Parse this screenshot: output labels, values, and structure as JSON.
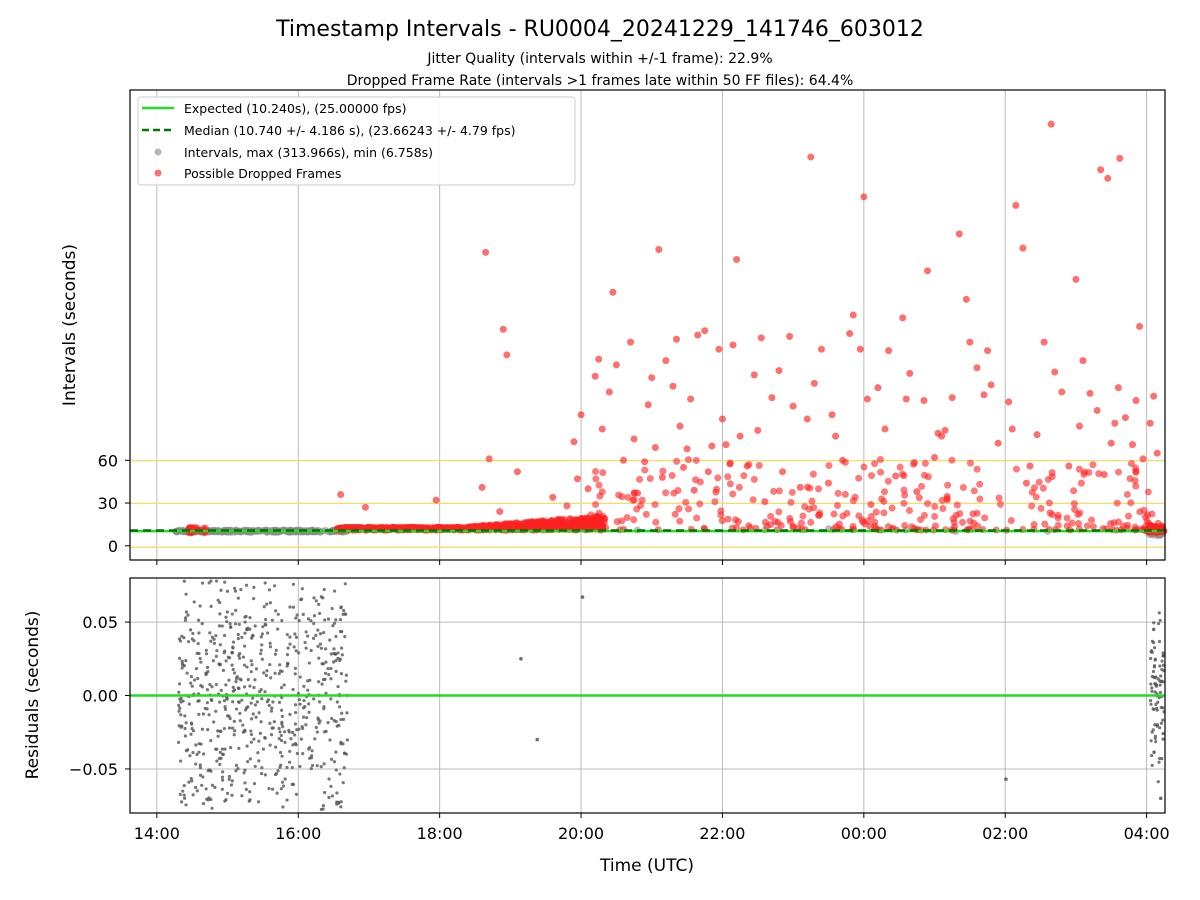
{
  "chart_data": [
    {
      "type": "scatter",
      "title": "Timestamp Intervals - RU0004_20241229_141746_603012",
      "subtitle_lines": [
        "Jitter Quality (intervals within +/-1 frame): 22.9%",
        "Dropped Frame Rate (intervals >1 frames late within 50 FF files): 64.4%"
      ],
      "ylabel": "Intervals (seconds)",
      "yticks": [
        0,
        30,
        60
      ],
      "ytick_labels": [
        "0",
        "30",
        "60"
      ],
      "ylim": [
        -10,
        320
      ],
      "xlim": [
        13.62,
        28.26
      ],
      "xticks": [
        14,
        16,
        18,
        20,
        22,
        24,
        26,
        28
      ],
      "threshold_lines": [
        -1,
        10.24,
        29.76,
        59.76
      ],
      "expected_interval": 10.24,
      "median_interval": 10.74,
      "legend": [
        {
          "label": "Expected (10.240s), (25.00000 fps)",
          "marker": "line",
          "color": "#22dd22"
        },
        {
          "label": "Median (10.740 +/- 4.186 s), (23.66243 +/- 4.79 fps)",
          "marker": "dashed",
          "color": "#007700"
        },
        {
          "label": "Intervals, max (313.966s), min (6.758s)",
          "marker": "dot",
          "color": "#999999"
        },
        {
          "label": "Possible Dropped Frames",
          "marker": "dot",
          "color": "#ff3333"
        }
      ],
      "series": [
        {
          "name": "Possible Dropped Frames",
          "points": [
            [
              16.6,
              36
            ],
            [
              16.95,
              27
            ],
            [
              17.95,
              32
            ],
            [
              18.6,
              41
            ],
            [
              18.65,
              206
            ],
            [
              18.7,
              61
            ],
            [
              18.85,
              24
            ],
            [
              18.9,
              152
            ],
            [
              18.95,
              134
            ],
            [
              19.1,
              52
            ],
            [
              19.6,
              34
            ],
            [
              19.8,
              28
            ],
            [
              19.9,
              73
            ],
            [
              19.95,
              47
            ],
            [
              20.0,
              92
            ],
            [
              20.1,
              40
            ],
            [
              20.2,
              119
            ],
            [
              20.25,
              131
            ],
            [
              20.3,
              82
            ],
            [
              20.4,
              108
            ],
            [
              20.45,
              178
            ],
            [
              20.5,
              127
            ],
            [
              20.6,
              60
            ],
            [
              20.7,
              143
            ],
            [
              20.75,
              75
            ],
            [
              20.8,
              37
            ],
            [
              20.9,
              59
            ],
            [
              20.95,
              99
            ],
            [
              21.0,
              118
            ],
            [
              21.05,
              69
            ],
            [
              21.1,
              208
            ],
            [
              21.15,
              48
            ],
            [
              21.2,
              130
            ],
            [
              21.3,
              112
            ],
            [
              21.35,
              145
            ],
            [
              21.4,
              84
            ],
            [
              21.45,
              55
            ],
            [
              21.5,
              68
            ],
            [
              21.55,
              103
            ],
            [
              21.6,
              39
            ],
            [
              21.65,
              148
            ],
            [
              21.75,
              151
            ],
            [
              21.8,
              52
            ],
            [
              21.85,
              70
            ],
            [
              21.95,
              138
            ],
            [
              22.0,
              89
            ],
            [
              22.05,
              71
            ],
            [
              22.15,
              141
            ],
            [
              22.2,
              201
            ],
            [
              22.25,
              77
            ],
            [
              22.35,
              56
            ],
            [
              22.45,
              120
            ],
            [
              22.5,
              81
            ],
            [
              22.55,
              146
            ],
            [
              22.6,
              31
            ],
            [
              22.7,
              104
            ],
            [
              22.8,
              123
            ],
            [
              22.85,
              52
            ],
            [
              22.95,
              147
            ],
            [
              23.0,
              98
            ],
            [
              23.1,
              41
            ],
            [
              23.2,
              89
            ],
            [
              23.25,
              273
            ],
            [
              23.3,
              114
            ],
            [
              23.4,
              138
            ],
            [
              23.5,
              44
            ],
            [
              23.55,
              92
            ],
            [
              23.6,
              77
            ],
            [
              23.7,
              60
            ],
            [
              23.8,
              149
            ],
            [
              23.85,
              162
            ],
            [
              23.95,
              138
            ],
            [
              24.0,
              245
            ],
            [
              24.05,
              103
            ],
            [
              24.1,
              29
            ],
            [
              24.2,
              111
            ],
            [
              24.3,
              82
            ],
            [
              24.35,
              137
            ],
            [
              24.45,
              49
            ],
            [
              24.55,
              160
            ],
            [
              24.6,
              103
            ],
            [
              24.65,
              121
            ],
            [
              24.75,
              38
            ],
            [
              24.85,
              102
            ],
            [
              24.9,
              193
            ],
            [
              25.0,
              62
            ],
            [
              25.05,
              79
            ],
            [
              25.1,
              77
            ],
            [
              25.15,
              81
            ],
            [
              25.25,
              104
            ],
            [
              25.35,
              219
            ],
            [
              25.45,
              173
            ],
            [
              25.5,
              143
            ],
            [
              25.6,
              125
            ],
            [
              25.7,
              106
            ],
            [
              25.75,
              137
            ],
            [
              25.8,
              113
            ],
            [
              25.9,
              72
            ],
            [
              26.05,
              101
            ],
            [
              26.1,
              82
            ],
            [
              26.25,
              209
            ],
            [
              26.3,
              44
            ],
            [
              26.35,
              56
            ],
            [
              26.45,
              78
            ],
            [
              26.55,
              143
            ],
            [
              26.7,
              122
            ],
            [
              26.8,
              108
            ],
            [
              26.9,
              56
            ],
            [
              27.0,
              187
            ],
            [
              27.05,
              84
            ],
            [
              27.1,
              130
            ],
            [
              27.2,
              107
            ],
            [
              27.3,
              95
            ],
            [
              27.4,
              50
            ],
            [
              27.5,
              72
            ],
            [
              27.55,
              86
            ],
            [
              27.6,
              111
            ],
            [
              27.7,
              90
            ],
            [
              27.8,
              71
            ],
            [
              27.85,
              102
            ],
            [
              27.9,
              154
            ],
            [
              27.95,
              61
            ],
            [
              28.05,
              86
            ],
            [
              28.1,
              105
            ],
            [
              28.15,
              65
            ],
            [
              27.62,
              272
            ],
            [
              27.45,
              258
            ],
            [
              27.35,
              264
            ],
            [
              26.65,
              296
            ],
            [
              26.15,
              239
            ]
          ]
        },
        {
          "name": "Intervals",
          "points": [
            [
              14.3,
              10.2
            ],
            [
              14.6,
              10.3
            ],
            [
              15.0,
              10.2
            ],
            [
              15.5,
              10.3
            ],
            [
              16.0,
              10.2
            ],
            [
              16.5,
              10.3
            ],
            [
              20.8,
              11
            ],
            [
              22.6,
              11
            ],
            [
              23.5,
              12
            ],
            [
              24.6,
              11
            ],
            [
              25.3,
              10
            ],
            [
              26.6,
              10
            ],
            [
              28.0,
              10.2
            ]
          ]
        }
      ]
    },
    {
      "type": "scatter",
      "ylabel": "Residuals (seconds)",
      "xlabel": "Time (UTC)",
      "ylim": [
        -0.08,
        0.08
      ],
      "yticks": [
        -0.05,
        0.0,
        0.05
      ],
      "ytick_labels": [
        "−0.05",
        "0.00",
        "0.05"
      ],
      "xlim": [
        13.62,
        28.26
      ],
      "xticks": [
        14,
        16,
        18,
        20,
        22,
        24,
        26,
        28
      ],
      "xtick_labels": [
        "14:00",
        "16:00",
        "18:00",
        "20:00",
        "22:00",
        "00:00",
        "02:00",
        "04:00"
      ],
      "zero_line_color": "#22dd22",
      "series": [
        {
          "name": "Residuals",
          "points": [
            [
              20.02,
              0.067
            ],
            [
              19.15,
              0.025
            ],
            [
              19.38,
              -0.03
            ],
            [
              26.01,
              -0.057
            ],
            [
              28.1,
              0.045
            ],
            [
              28.15,
              -0.02
            ],
            [
              28.2,
              -0.07
            ],
            [
              28.12,
              0.008
            ]
          ]
        }
      ]
    }
  ]
}
